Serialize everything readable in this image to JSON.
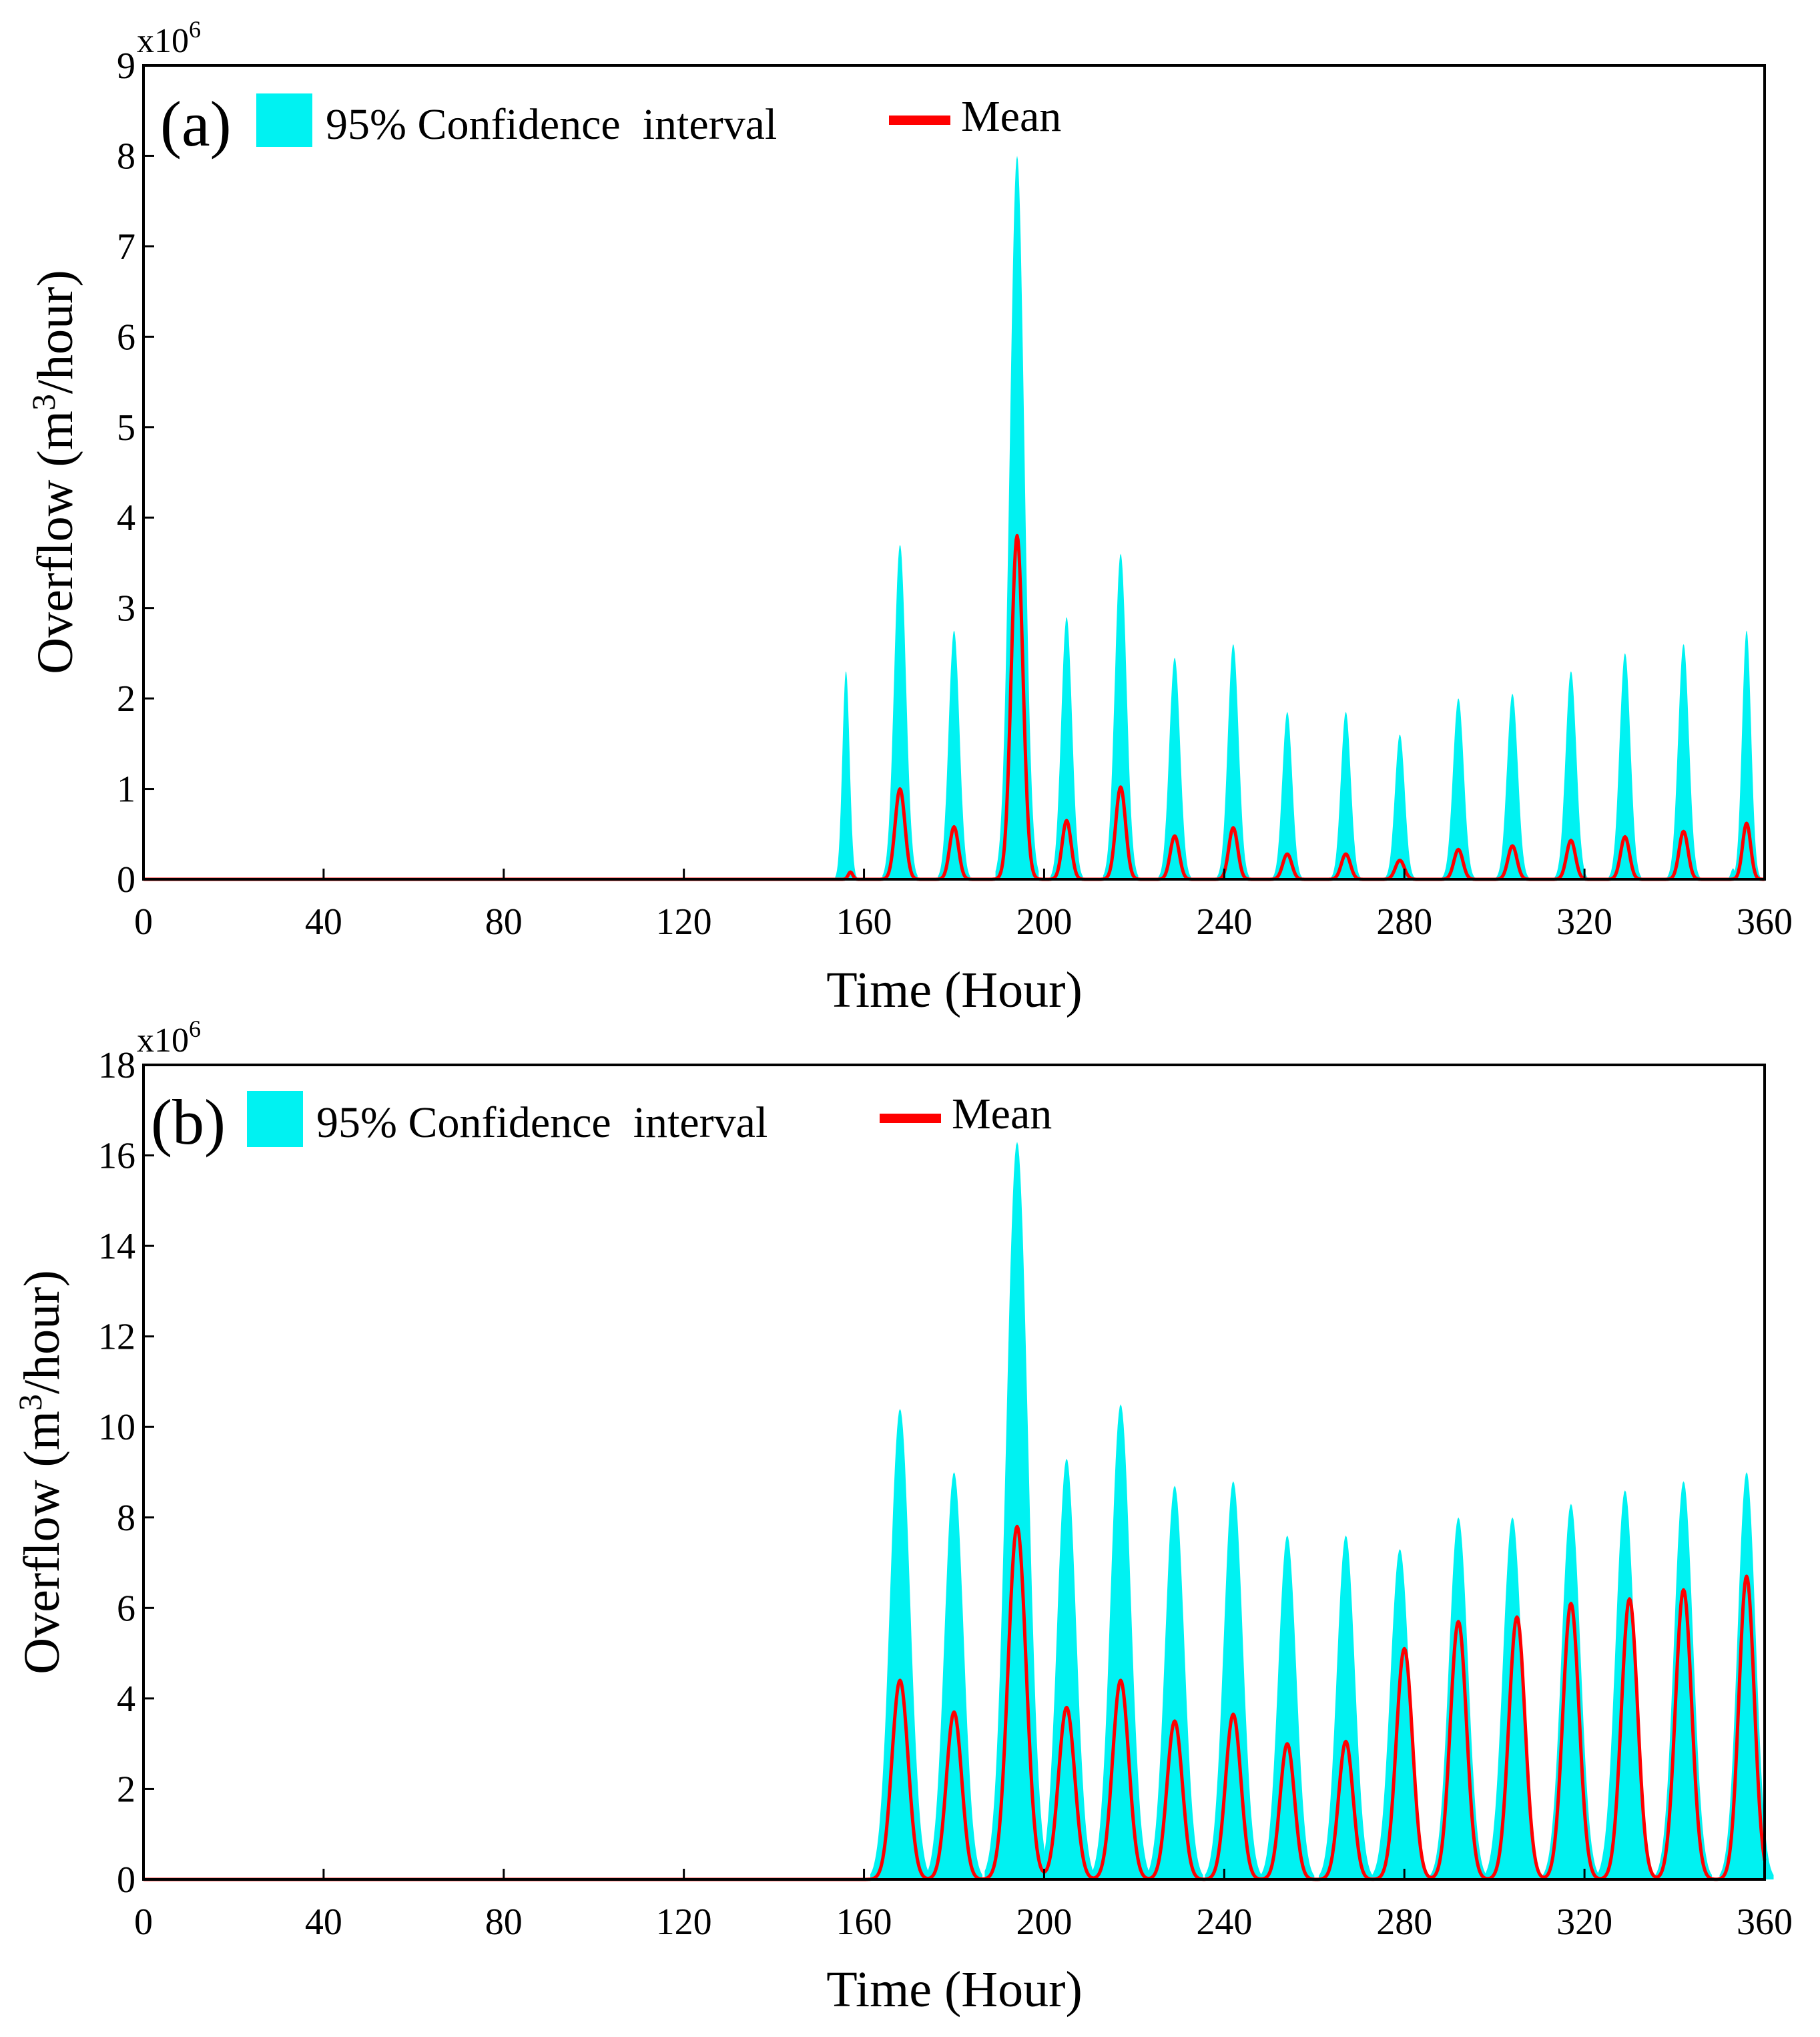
{
  "chart_data": [
    {
      "type": "area",
      "panel_label": "(a)",
      "xlabel": "Time (Hour)",
      "ylabel": "Overflow (m³/hour)",
      "ylabel_base": "Overflow (m",
      "ylabel_sup": "3",
      "ylabel_tail": "/hour)",
      "y_multiplier_base": "x10",
      "y_multiplier_exp": "6",
      "xlim": [
        0,
        360
      ],
      "ylim": [
        0,
        9
      ],
      "xticks": [
        0,
        40,
        80,
        120,
        160,
        200,
        240,
        280,
        320,
        360
      ],
      "yticks": [
        0,
        1,
        2,
        3,
        4,
        5,
        6,
        7,
        8,
        9
      ],
      "legend": {
        "placement": "top-left",
        "ci_label": "95% Confidence  interval",
        "mean_label": "Mean"
      },
      "series": [
        {
          "name": "95% Confidence interval",
          "color": "#00f2f2",
          "peaks": [
            {
              "t": 156,
              "w": 0.8,
              "v": 2.3
            },
            {
              "t": 168,
              "w": 1.3,
              "v": 3.7
            },
            {
              "t": 180,
              "w": 1.2,
              "v": 2.75
            },
            {
              "t": 194,
              "w": 1.6,
              "v": 8.0
            },
            {
              "t": 205,
              "w": 1.2,
              "v": 2.9
            },
            {
              "t": 217,
              "w": 1.3,
              "v": 3.6
            },
            {
              "t": 229,
              "w": 1.2,
              "v": 2.45
            },
            {
              "t": 242,
              "w": 1.2,
              "v": 2.6
            },
            {
              "t": 254,
              "w": 1.1,
              "v": 1.85
            },
            {
              "t": 267,
              "w": 1.1,
              "v": 1.85
            },
            {
              "t": 279,
              "w": 1.1,
              "v": 1.6
            },
            {
              "t": 292,
              "w": 1.2,
              "v": 2.0
            },
            {
              "t": 304,
              "w": 1.2,
              "v": 2.05
            },
            {
              "t": 317,
              "w": 1.2,
              "v": 2.3
            },
            {
              "t": 329,
              "w": 1.2,
              "v": 2.5
            },
            {
              "t": 342,
              "w": 1.2,
              "v": 2.6
            },
            {
              "t": 353,
              "w": 0.5,
              "v": 0.12
            },
            {
              "t": 356,
              "w": 1.0,
              "v": 2.75
            }
          ]
        },
        {
          "name": "Mean",
          "color": "#ff0000",
          "peaks": [
            {
              "t": 157,
              "w": 0.5,
              "v": 0.08
            },
            {
              "t": 168,
              "w": 1.1,
              "v": 1.0
            },
            {
              "t": 180,
              "w": 1.0,
              "v": 0.58
            },
            {
              "t": 194,
              "w": 1.3,
              "v": 3.8
            },
            {
              "t": 205,
              "w": 1.0,
              "v": 0.65
            },
            {
              "t": 217,
              "w": 1.1,
              "v": 1.02
            },
            {
              "t": 229,
              "w": 1.0,
              "v": 0.48
            },
            {
              "t": 242,
              "w": 1.0,
              "v": 0.57
            },
            {
              "t": 254,
              "w": 1.0,
              "v": 0.28
            },
            {
              "t": 267,
              "w": 1.0,
              "v": 0.28
            },
            {
              "t": 279,
              "w": 1.0,
              "v": 0.21
            },
            {
              "t": 292,
              "w": 1.0,
              "v": 0.33
            },
            {
              "t": 304,
              "w": 1.0,
              "v": 0.37
            },
            {
              "t": 317,
              "w": 1.0,
              "v": 0.43
            },
            {
              "t": 329,
              "w": 1.0,
              "v": 0.47
            },
            {
              "t": 342,
              "w": 1.0,
              "v": 0.53
            },
            {
              "t": 356,
              "w": 0.9,
              "v": 0.62
            }
          ]
        }
      ]
    },
    {
      "type": "area",
      "panel_label": "(b)",
      "xlabel": "Time (Hour)",
      "ylabel": "Overflow (m³/hour)",
      "ylabel_base": "Overflow (m",
      "ylabel_sup": "3",
      "ylabel_tail": "/hour)",
      "y_multiplier_base": "x10",
      "y_multiplier_exp": "6",
      "xlim": [
        0,
        360
      ],
      "ylim": [
        0,
        18
      ],
      "xticks": [
        0,
        40,
        80,
        120,
        160,
        200,
        240,
        280,
        320,
        360
      ],
      "yticks": [
        0,
        2,
        4,
        6,
        8,
        10,
        12,
        14,
        16,
        18
      ],
      "legend": {
        "placement": "top-left",
        "ci_label": "95% Confidence  interval",
        "mean_label": "Mean"
      },
      "series": [
        {
          "name": "95% Confidence interval",
          "color": "#00f2f2",
          "peaks": [
            {
              "t": 168,
              "w": 2.2,
              "v": 10.4
            },
            {
              "t": 180,
              "w": 2.1,
              "v": 9.0
            },
            {
              "t": 194,
              "w": 2.4,
              "v": 16.3
            },
            {
              "t": 205,
              "w": 2.1,
              "v": 9.3
            },
            {
              "t": 217,
              "w": 2.2,
              "v": 10.5
            },
            {
              "t": 229,
              "w": 2.1,
              "v": 8.7
            },
            {
              "t": 242,
              "w": 2.1,
              "v": 8.8
            },
            {
              "t": 254,
              "w": 2.0,
              "v": 7.6
            },
            {
              "t": 267,
              "w": 2.0,
              "v": 7.6
            },
            {
              "t": 279,
              "w": 2.1,
              "v": 7.3
            },
            {
              "t": 292,
              "w": 2.1,
              "v": 8.0
            },
            {
              "t": 304,
              "w": 2.1,
              "v": 8.0
            },
            {
              "t": 317,
              "w": 2.1,
              "v": 8.3
            },
            {
              "t": 329,
              "w": 2.1,
              "v": 8.6
            },
            {
              "t": 342,
              "w": 2.1,
              "v": 8.8
            },
            {
              "t": 356,
              "w": 2.0,
              "v": 9.0
            }
          ]
        },
        {
          "name": "Mean",
          "color": "#ff0000",
          "peaks": [
            {
              "t": 168,
              "w": 1.8,
              "v": 4.4
            },
            {
              "t": 180,
              "w": 1.7,
              "v": 3.7
            },
            {
              "t": 194,
              "w": 2.0,
              "v": 7.8
            },
            {
              "t": 205,
              "w": 1.8,
              "v": 3.8
            },
            {
              "t": 217,
              "w": 1.8,
              "v": 4.4
            },
            {
              "t": 229,
              "w": 1.7,
              "v": 3.5
            },
            {
              "t": 242,
              "w": 1.7,
              "v": 3.65
            },
            {
              "t": 254,
              "w": 1.6,
              "v": 3.0
            },
            {
              "t": 267,
              "w": 1.6,
              "v": 3.05
            },
            {
              "t": 280,
              "w": 1.8,
              "v": 5.1
            },
            {
              "t": 292,
              "w": 1.8,
              "v": 5.7
            },
            {
              "t": 305,
              "w": 1.8,
              "v": 5.8
            },
            {
              "t": 317,
              "w": 1.8,
              "v": 6.1
            },
            {
              "t": 330,
              "w": 1.8,
              "v": 6.2
            },
            {
              "t": 342,
              "w": 1.8,
              "v": 6.4
            },
            {
              "t": 356,
              "w": 1.7,
              "v": 6.7
            }
          ]
        }
      ]
    }
  ]
}
